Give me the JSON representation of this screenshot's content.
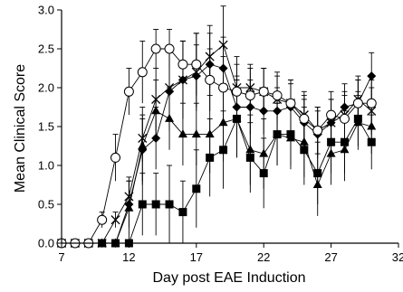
{
  "chart_data": {
    "type": "line",
    "title": "",
    "xlabel": "Day post EAE Induction",
    "ylabel": "Mean Clinical Score",
    "xlim": [
      7,
      32
    ],
    "ylim": [
      0.0,
      3.0
    ],
    "xticks": [
      7,
      12,
      17,
      22,
      27,
      32
    ],
    "yticks": [
      "0.0",
      "0.5",
      "1.0",
      "1.5",
      "2.0",
      "2.5",
      "3.0"
    ],
    "grid": false,
    "legend": "none",
    "series": [
      {
        "marker": "circle-open",
        "x": [
          7,
          8,
          9,
          10,
          11,
          12,
          13,
          14,
          15,
          16,
          17,
          18,
          19,
          20,
          21,
          22,
          23,
          24,
          25,
          26,
          27,
          28,
          29,
          30
        ],
        "y": [
          0,
          0,
          0,
          0.3,
          1.1,
          1.95,
          2.2,
          2.5,
          2.5,
          2.3,
          2.3,
          2.1,
          2.0,
          1.95,
          1.9,
          1.95,
          1.9,
          1.8,
          1.6,
          1.45,
          1.65,
          1.6,
          1.8,
          1.8
        ],
        "err": [
          0,
          0,
          0,
          0.1,
          0.3,
          0.3,
          0.4,
          0.25,
          0.25,
          0.3,
          0.4,
          0.4,
          0.4,
          0.35,
          0.35,
          0.3,
          0.3,
          0.3,
          0.3,
          0.3,
          0.3,
          0.3,
          0.3,
          0.3
        ]
      },
      {
        "marker": "x",
        "x": [
          7,
          8,
          9,
          10,
          11,
          12,
          13,
          14,
          15,
          16,
          17,
          18,
          19,
          20,
          21,
          22,
          23,
          24,
          25,
          26,
          27,
          28,
          29,
          30
        ],
        "y": [
          0,
          0,
          0,
          0,
          0.3,
          0.6,
          1.35,
          1.85,
          2.0,
          2.1,
          2.2,
          2.4,
          2.55,
          2.0,
          2.0,
          1.95,
          1.85,
          1.8,
          1.65,
          1.45,
          1.55,
          1.65,
          1.85,
          1.7
        ],
        "err": [
          0,
          0,
          0,
          0,
          0.1,
          0.2,
          0.3,
          0.4,
          0.5,
          0.5,
          0.5,
          0.4,
          0.5,
          0.4,
          0.3,
          0.3,
          0.3,
          0.3,
          0.3,
          0.3,
          0.3,
          0.3,
          0.3,
          0.3
        ]
      },
      {
        "marker": "diamond-filled",
        "x": [
          7,
          8,
          9,
          10,
          11,
          12,
          13,
          14,
          15,
          16,
          17,
          18,
          19,
          20,
          21,
          22,
          23,
          24,
          25,
          26,
          27,
          28,
          29,
          30
        ],
        "y": [
          0,
          0,
          0,
          0,
          0,
          0.5,
          1.2,
          1.35,
          1.95,
          2.1,
          2.15,
          2.3,
          2.25,
          1.75,
          1.75,
          1.7,
          1.7,
          1.75,
          1.55,
          1.4,
          1.55,
          1.75,
          1.8,
          2.15
        ],
        "err": [
          0,
          0,
          0,
          0,
          0,
          0.3,
          0.4,
          0.4,
          0.5,
          0.5,
          0.4,
          0.4,
          0.4,
          0.4,
          0.35,
          0.3,
          0.3,
          0.3,
          0.3,
          0.3,
          0.3,
          0.3,
          0.3,
          0.3
        ]
      },
      {
        "marker": "triangle-filled",
        "x": [
          7,
          8,
          9,
          10,
          11,
          12,
          13,
          14,
          15,
          16,
          17,
          18,
          19,
          20,
          21,
          22,
          23,
          24,
          25,
          26,
          27,
          28,
          29,
          30
        ],
        "y": [
          0,
          0,
          0,
          0,
          0,
          0.45,
          1.25,
          1.7,
          1.6,
          1.4,
          1.4,
          1.4,
          1.55,
          1.6,
          1.2,
          1.15,
          1.4,
          1.35,
          1.3,
          0.75,
          1.15,
          1.2,
          1.55,
          1.5
        ],
        "err": [
          0,
          0,
          0,
          0,
          0,
          0.4,
          0.5,
          0.4,
          0.4,
          0.4,
          0.4,
          0.5,
          0.5,
          0.5,
          0.45,
          0.45,
          0.4,
          0.4,
          0.45,
          0.4,
          0.4,
          0.4,
          0.35,
          0.35
        ]
      },
      {
        "marker": "square-filled",
        "x": [
          7,
          8,
          9,
          10,
          11,
          12,
          13,
          14,
          15,
          16,
          17,
          18,
          19,
          20,
          21,
          22,
          23,
          24,
          25,
          26,
          27,
          28,
          29,
          30
        ],
        "y": [
          0,
          0,
          0,
          0,
          0,
          0,
          0.5,
          0.5,
          0.5,
          0.4,
          0.7,
          1.1,
          1.2,
          1.6,
          1.1,
          0.9,
          1.4,
          1.4,
          1.2,
          0.9,
          1.3,
          1.3,
          1.6,
          1.3
        ],
        "err": [
          0,
          0,
          0,
          0,
          0,
          0,
          0.4,
          0.4,
          0.5,
          0.4,
          0.5,
          0.5,
          0.5,
          0.5,
          0.45,
          0.45,
          0.4,
          0.4,
          0.45,
          0.4,
          0.4,
          0.4,
          0.35,
          0.35
        ]
      }
    ]
  }
}
